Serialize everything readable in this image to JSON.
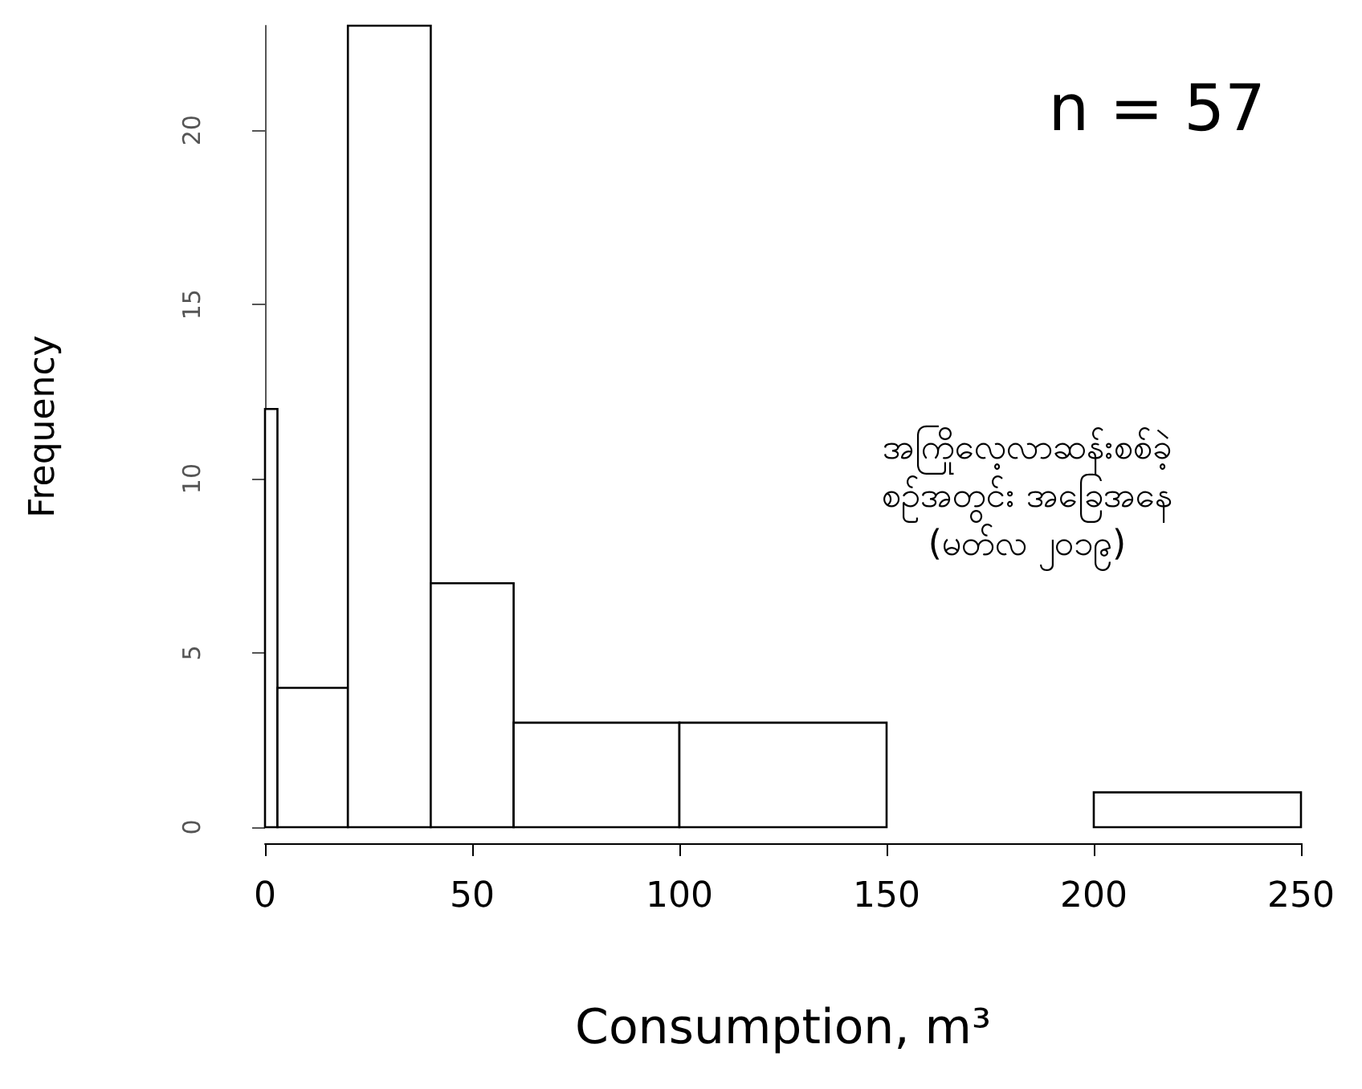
{
  "chart_data": {
    "type": "histogram",
    "xlabel": "Consumption, m³",
    "ylabel": "Frequency",
    "bins": [
      0,
      3,
      20,
      40,
      60,
      100,
      150,
      200,
      250
    ],
    "values": [
      12,
      4,
      23,
      7,
      3,
      3,
      0,
      1
    ],
    "color": "#ffffff",
    "xlim": [
      0,
      250
    ],
    "xticks": [
      0,
      50,
      100,
      150,
      200,
      250
    ],
    "ylim": [
      0,
      23
    ],
    "yticks": [
      0,
      5,
      10,
      15,
      20
    ],
    "grid": false,
    "annotations": [
      "n = 57",
      "အကြိုလေ့လာဆန်းစစ်ခဲ့\nစဉ်အတွင်း အခြေအနေ\n(မတ်လ ၂၀၁၉)"
    ]
  }
}
